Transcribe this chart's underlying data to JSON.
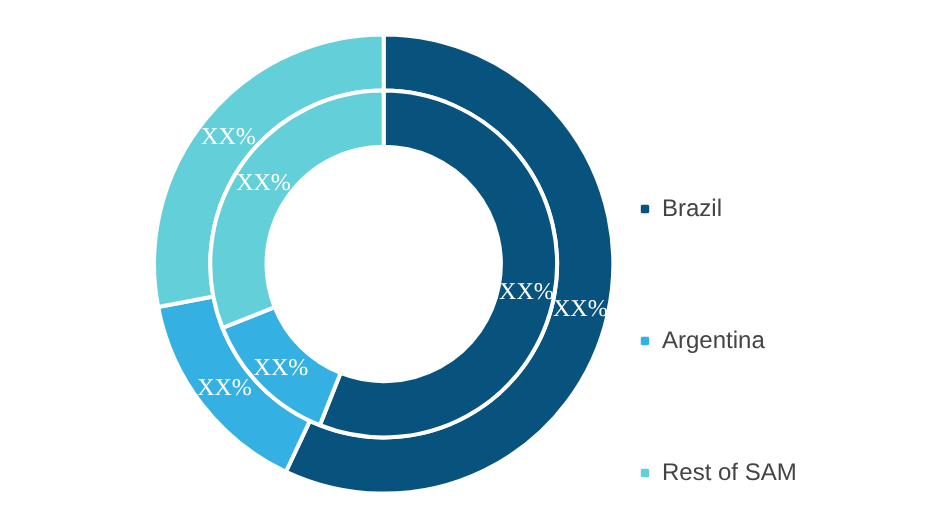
{
  "chart_data": {
    "type": "donut",
    "categories": [
      "Brazil",
      "Argentina",
      "Rest of SAM"
    ],
    "colors": [
      "#08537e",
      "#35b0e2",
      "#63cfd9"
    ],
    "series": [
      {
        "values": [
          57,
          15,
          28
        ],
        "value_labels": [
          "XX%",
          "XX%",
          "XX%"
        ]
      },
      {
        "values": [
          56,
          13,
          31
        ],
        "value_labels": [
          "XX%",
          "XX%",
          "XX%"
        ]
      }
    ],
    "legend": "right"
  }
}
